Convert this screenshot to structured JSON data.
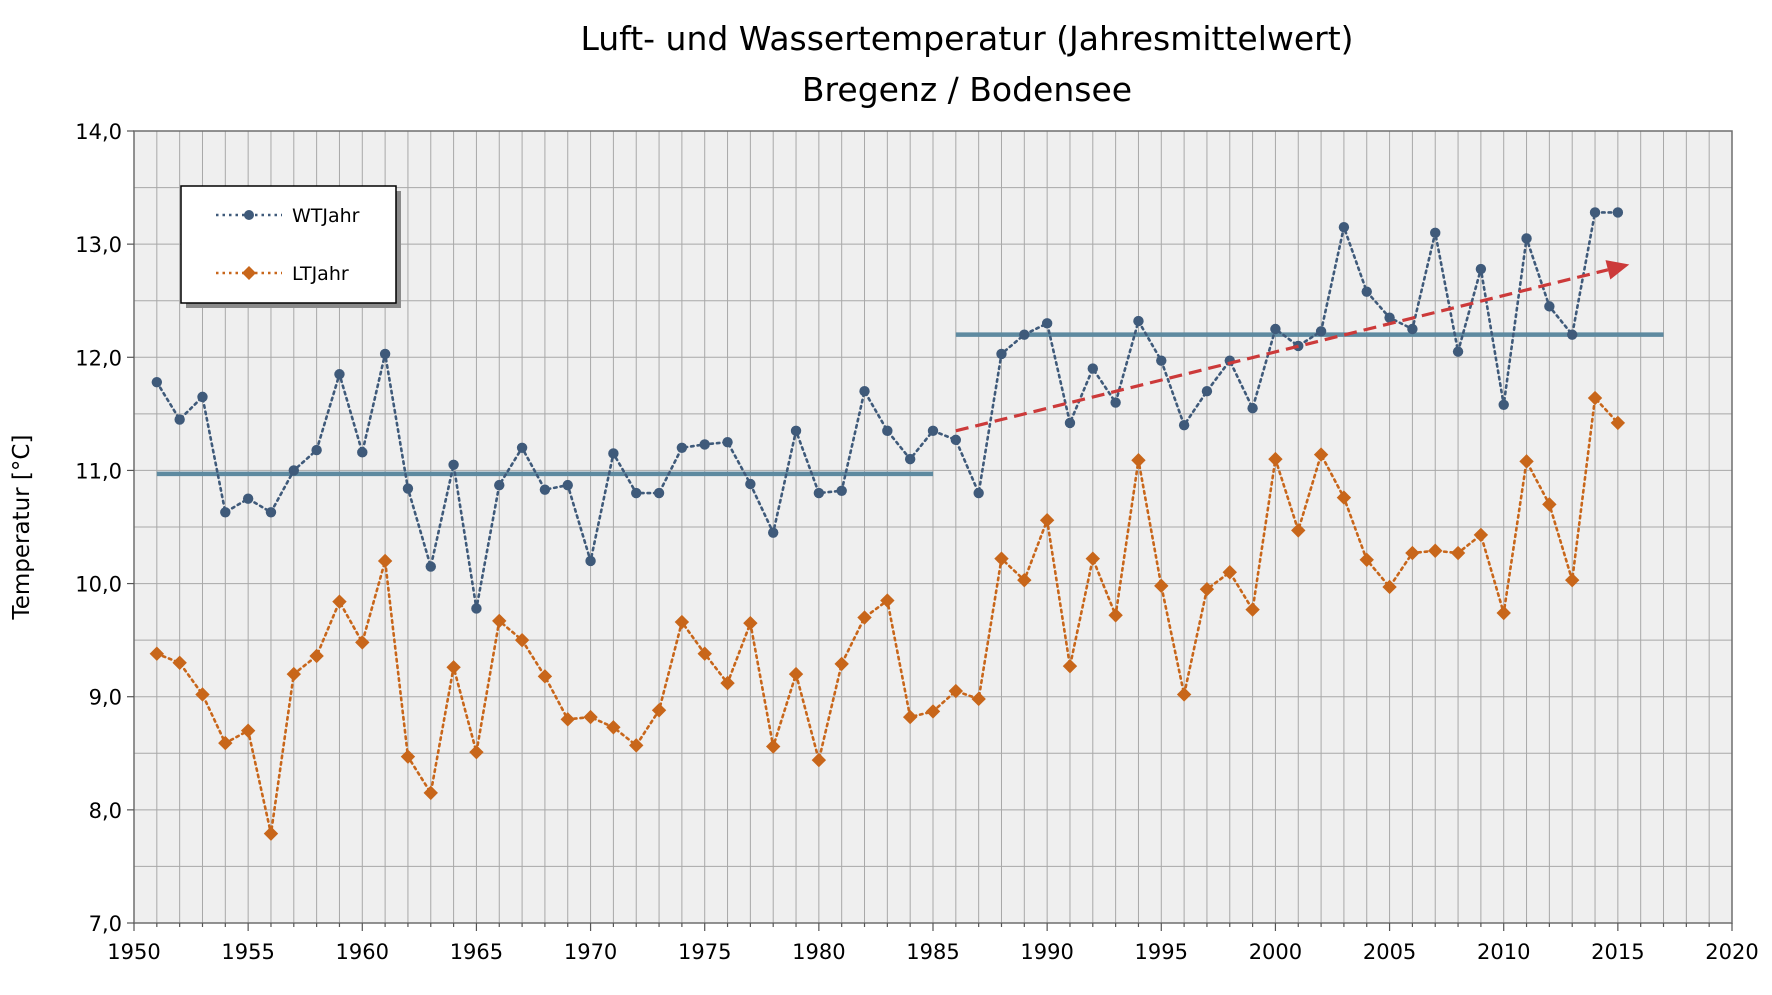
{
  "chart_data": {
    "type": "line",
    "title": "Luft- und Wassertemperatur (Jahresmittelwert)",
    "subtitle": "Bregenz / Bodensee",
    "xlabel": "",
    "ylabel": "Temperatur [°C]",
    "xlim": [
      1950,
      2020
    ],
    "ylim": [
      7.0,
      14.0
    ],
    "x_ticks": [
      "1950",
      "1955",
      "1960",
      "1965",
      "1970",
      "1975",
      "1980",
      "1985",
      "1990",
      "1995",
      "2000",
      "2005",
      "2010",
      "2015",
      "2020"
    ],
    "y_ticks": [
      "7,0",
      "8,0",
      "9,0",
      "10,0",
      "11,0",
      "12,0",
      "13,0",
      "14,0"
    ],
    "grid": true,
    "legend_position": "top-left",
    "colors": {
      "wt": "#3f5a7a",
      "lt": "#c8661a",
      "mean_line": "#5e8aa0",
      "trend_arrow": "#cc3a3a"
    },
    "series": [
      {
        "name": "WTJahr",
        "x": [
          1951,
          1952,
          1953,
          1954,
          1955,
          1956,
          1957,
          1958,
          1959,
          1960,
          1961,
          1962,
          1963,
          1964,
          1965,
          1966,
          1967,
          1968,
          1969,
          1970,
          1971,
          1972,
          1973,
          1974,
          1975,
          1976,
          1977,
          1978,
          1979,
          1980,
          1981,
          1982,
          1983,
          1984,
          1985,
          1986,
          1987,
          1988,
          1989,
          1990,
          1991,
          1992,
          1993,
          1994,
          1995,
          1996,
          1997,
          1998,
          1999,
          2000,
          2001,
          2002,
          2003,
          2004,
          2005,
          2006,
          2007,
          2008,
          2009,
          2010,
          2011,
          2012,
          2013,
          2014,
          2015
        ],
        "values": [
          11.78,
          11.45,
          11.65,
          10.63,
          10.75,
          10.63,
          11.0,
          11.18,
          11.85,
          11.16,
          12.03,
          10.84,
          10.15,
          11.05,
          9.78,
          10.87,
          11.2,
          10.83,
          10.87,
          10.2,
          11.15,
          10.8,
          10.8,
          11.2,
          11.23,
          11.25,
          10.88,
          10.45,
          11.35,
          10.8,
          10.82,
          11.7,
          11.35,
          11.1,
          11.35,
          11.27,
          10.8,
          12.03,
          12.2,
          12.3,
          11.42,
          11.9,
          11.6,
          12.32,
          11.97,
          11.4,
          11.7,
          11.97,
          11.55,
          12.25,
          12.1,
          12.23,
          13.15,
          12.58,
          12.35,
          12.25,
          13.1,
          12.05,
          12.78,
          11.58,
          13.05,
          12.45,
          12.2,
          13.28,
          13.28
        ]
      },
      {
        "name": "LTJahr",
        "x": [
          1951,
          1952,
          1953,
          1954,
          1955,
          1956,
          1957,
          1958,
          1959,
          1960,
          1961,
          1962,
          1963,
          1964,
          1965,
          1966,
          1967,
          1968,
          1969,
          1970,
          1971,
          1972,
          1973,
          1974,
          1975,
          1976,
          1977,
          1978,
          1979,
          1980,
          1981,
          1982,
          1983,
          1984,
          1985,
          1986,
          1987,
          1988,
          1989,
          1990,
          1991,
          1992,
          1993,
          1994,
          1995,
          1996,
          1997,
          1998,
          1999,
          2000,
          2001,
          2002,
          2003,
          2004,
          2005,
          2006,
          2007,
          2008,
          2009,
          2010,
          2011,
          2012,
          2013,
          2014,
          2015
        ],
        "values": [
          9.38,
          9.3,
          9.02,
          8.59,
          8.7,
          7.79,
          9.2,
          9.36,
          9.84,
          9.48,
          10.2,
          8.47,
          8.15,
          9.26,
          8.51,
          9.67,
          9.5,
          9.18,
          8.8,
          8.82,
          8.73,
          8.57,
          8.88,
          9.66,
          9.38,
          9.12,
          9.65,
          8.56,
          9.2,
          8.44,
          9.29,
          9.7,
          9.85,
          8.82,
          8.87,
          9.05,
          8.98,
          10.22,
          10.03,
          10.56,
          9.27,
          10.22,
          9.72,
          11.09,
          9.98,
          9.02,
          9.95,
          10.1,
          9.77,
          11.1,
          10.47,
          11.14,
          10.76,
          10.21,
          9.97,
          10.27,
          10.29,
          10.27,
          10.43,
          9.74,
          11.08,
          10.7,
          10.03,
          11.64,
          11.42
        ]
      }
    ],
    "mean_lines": [
      {
        "x": [
          1951,
          1985
        ],
        "y": 10.97
      },
      {
        "x": [
          1986,
          2017
        ],
        "y": 12.2
      }
    ],
    "trend_arrow": {
      "x": [
        1986,
        2015.5
      ],
      "y": [
        11.35,
        12.82
      ]
    }
  }
}
